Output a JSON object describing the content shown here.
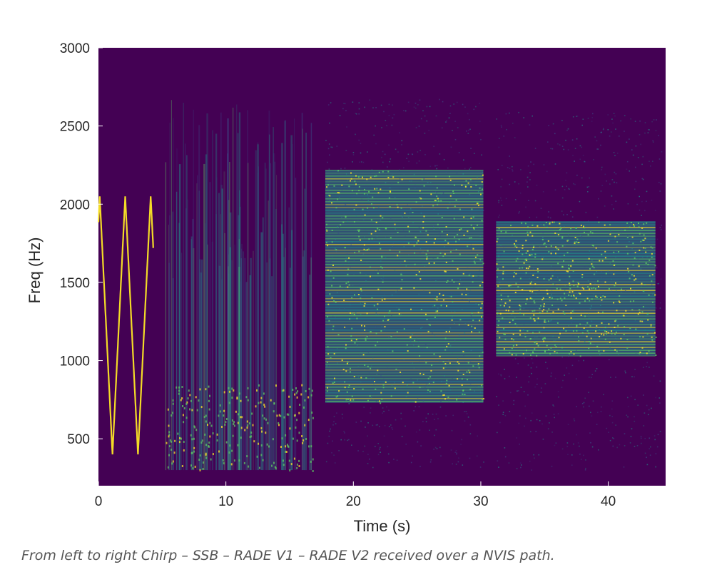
{
  "chart_data": {
    "type": "heatmap",
    "title": "",
    "xlabel": "Time (s)",
    "ylabel": "Freq (Hz)",
    "xlim": [
      0,
      44.5
    ],
    "ylim": [
      200,
      3000
    ],
    "x_ticks": [
      0,
      10,
      20,
      30,
      40
    ],
    "y_ticks": [
      500,
      1000,
      1500,
      2000,
      2500,
      3000
    ],
    "grid": false,
    "colormap": "viridis",
    "segments": [
      {
        "t_start": 0,
        "t_end": 4.3,
        "f_low": 400,
        "f_high": 2050,
        "intensity": "high",
        "pattern": "chirp"
      },
      {
        "t_start": 5.2,
        "t_end": 16.8,
        "f_low": 300,
        "f_high": 2700,
        "intensity": "medium",
        "pattern": "voice"
      },
      {
        "t_start": 17.8,
        "t_end": 30.2,
        "f_low": 730,
        "f_high": 2220,
        "intensity": "high",
        "pattern": "ofdm"
      },
      {
        "t_start": 17.8,
        "t_end": 30.2,
        "f_low": 320,
        "f_high": 2680,
        "intensity": "low",
        "pattern": "noise"
      },
      {
        "t_start": 31.2,
        "t_end": 43.7,
        "f_low": 1030,
        "f_high": 1890,
        "intensity": "high",
        "pattern": "ofdm"
      },
      {
        "t_start": 31.2,
        "t_end": 44.2,
        "f_low": 300,
        "f_high": 2600,
        "intensity": "low",
        "pattern": "noise"
      }
    ]
  },
  "caption": "From left to right Chirp – SSB – RADE V1 – RADE V2 received over a NVIS path.",
  "colors": {
    "background": "#440154",
    "low": "#3b528b",
    "mid": "#21918c",
    "high": "#5ec962",
    "peak": "#fde725",
    "axis_text": "#262626",
    "caption_text": "#555555"
  }
}
